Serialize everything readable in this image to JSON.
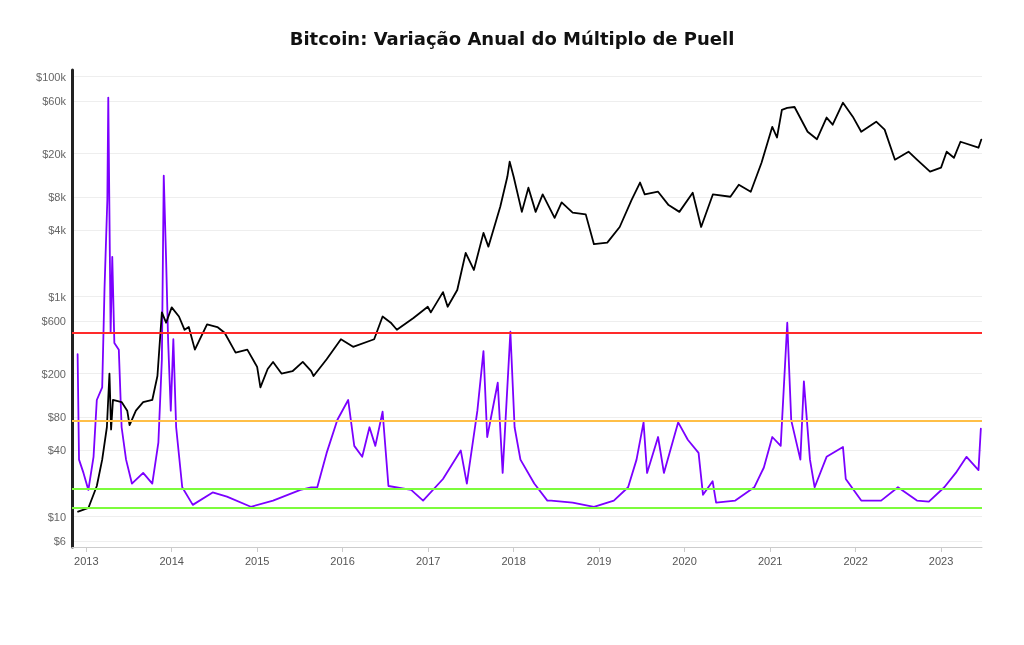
{
  "chart_data": {
    "type": "line",
    "title": "Bitcoin: Variação Anual do Múltiplo de Puell",
    "log": "y",
    "grid": "y",
    "marker": "none",
    "line_style": "solid",
    "xlim": [
      "2012-11-01",
      "2023-06-25"
    ],
    "xticks": [
      "2013",
      "2014",
      "2015",
      "2016",
      "2017",
      "2018",
      "2019",
      "2020",
      "2021",
      "2022",
      "2023"
    ],
    "ylim": [
      5.3,
      115000
    ],
    "yticks": [
      {
        "value": 6,
        "label": "$6"
      },
      {
        "value": 10,
        "label": "$10"
      },
      {
        "value": 40,
        "label": "$40"
      },
      {
        "value": 80,
        "label": "$80"
      },
      {
        "value": 200,
        "label": "$200"
      },
      {
        "value": 600,
        "label": "$600"
      },
      {
        "value": 1000,
        "label": "$1k"
      },
      {
        "value": 4000,
        "label": "$4k"
      },
      {
        "value": 8000,
        "label": "$8k"
      },
      {
        "value": 20000,
        "label": "$20k"
      },
      {
        "value": 60000,
        "label": "$60k"
      },
      {
        "value": 100000,
        "label": "$100k"
      }
    ],
    "series": [
      {
        "color": "#7b00ff",
        "x": [
          "2012-11-25",
          "2012-12-01",
          "2012-12-20",
          "2013-01-10",
          "2013-02-01",
          "2013-02-15",
          "2013-03-10",
          "2013-03-20",
          "2013-04-01",
          "2013-04-05",
          "2013-04-15",
          "2013-04-22",
          "2013-05-01",
          "2013-05-20",
          "2013-06-01",
          "2013-06-20",
          "2013-07-15",
          "2013-09-01",
          "2013-10-10",
          "2013-11-05",
          "2013-11-20",
          "2013-11-28",
          "2013-12-08",
          "2013-12-17",
          "2013-12-28",
          "2014-01-08",
          "2014-01-20",
          "2014-02-15",
          "2014-04-01",
          "2014-06-25",
          "2014-08-25",
          "2014-12-05",
          "2015-03-10",
          "2015-07-05",
          "2015-08-20",
          "2015-09-15",
          "2015-10-25",
          "2015-12-10",
          "2016-01-25",
          "2016-02-20",
          "2016-03-25",
          "2016-04-25",
          "2016-05-20",
          "2016-06-20",
          "2016-07-15",
          "2016-10-20",
          "2016-12-10",
          "2017-03-05",
          "2017-05-20",
          "2017-06-15",
          "2017-07-30",
          "2017-08-25",
          "2017-09-10",
          "2017-10-25",
          "2017-11-15",
          "2017-12-18",
          "2018-01-05",
          "2018-01-30",
          "2018-03-30",
          "2018-05-25",
          "2018-06-10",
          "2018-09-10",
          "2018-12-10",
          "2019-03-05",
          "2019-05-05",
          "2019-06-10",
          "2019-07-10",
          "2019-07-25",
          "2019-09-10",
          "2019-10-05",
          "2019-12-05",
          "2020-01-15",
          "2020-03-01",
          "2020-03-20",
          "2020-04-30",
          "2020-05-15",
          "2020-08-05",
          "2020-10-25",
          "2020-12-05",
          "2021-01-10",
          "2021-02-15",
          "2021-03-15",
          "2021-04-01",
          "2021-05-10",
          "2021-05-25",
          "2021-06-20",
          "2021-07-10",
          "2021-08-30",
          "2021-11-08",
          "2021-11-20",
          "2022-01-25",
          "2022-04-20",
          "2022-07-01",
          "2022-09-20",
          "2022-11-10",
          "2023-01-15",
          "2023-03-05",
          "2023-04-20",
          "2023-06-10",
          "2023-06-20"
        ],
        "values": [
          300,
          33,
          25,
          17.5,
          35,
          115,
          150,
          1200,
          7600,
          64500,
          470,
          2300,
          380,
          330,
          65,
          33,
          20,
          25,
          20,
          47,
          270,
          12600,
          2200,
          380,
          92,
          410,
          65,
          18.5,
          12.8,
          16.6,
          15.2,
          12.3,
          14,
          17.5,
          18.5,
          18.5,
          38,
          76,
          115,
          44,
          35,
          65,
          44,
          90,
          19,
          17.5,
          14,
          22,
          40,
          20,
          92,
          320,
          53,
          165,
          25,
          480,
          65,
          33,
          20,
          14,
          14,
          13.4,
          12.3,
          14,
          18.5,
          33,
          72,
          25,
          53,
          25,
          72,
          50,
          38,
          15.8,
          21,
          13.4,
          14,
          18.5,
          28,
          53,
          44,
          580,
          75,
          33,
          170,
          33,
          18.5,
          35,
          43,
          22,
          14,
          14,
          18.5,
          14,
          13.7,
          18.5,
          25,
          35,
          26.5,
          63
        ]
      },
      {
        "color": "#000000",
        "x": [
          "2012-11-27",
          "2013-01-10",
          "2013-02-15",
          "2013-03-10",
          "2013-03-30",
          "2013-04-10",
          "2013-04-17",
          "2013-04-25",
          "2013-06-01",
          "2013-06-25",
          "2013-07-05",
          "2013-08-01",
          "2013-09-01",
          "2013-10-10",
          "2013-11-01",
          "2013-11-20",
          "2013-12-08",
          "2014-01-01",
          "2014-02-01",
          "2014-02-25",
          "2014-03-15",
          "2014-04-10",
          "2014-05-01",
          "2014-06-01",
          "2014-07-15",
          "2014-08-15",
          "2014-10-01",
          "2014-11-20",
          "2015-01-01",
          "2015-01-15",
          "2015-02-15",
          "2015-03-10",
          "2015-04-15",
          "2015-06-01",
          "2015-07-15",
          "2015-08-20",
          "2015-08-30",
          "2015-10-25",
          "2015-12-25",
          "2016-02-15",
          "2016-05-15",
          "2016-06-20",
          "2016-07-25",
          "2016-08-20",
          "2016-10-30",
          "2016-12-30",
          "2017-01-12",
          "2017-03-05",
          "2017-03-25",
          "2017-05-05",
          "2017-06-10",
          "2017-07-15",
          "2017-08-25",
          "2017-09-15",
          "2017-11-05",
          "2017-12-05",
          "2017-12-15",
          "2018-01-01",
          "2018-02-05",
          "2018-03-05",
          "2018-04-05",
          "2018-05-05",
          "2018-06-25",
          "2018-07-25",
          "2018-09-10",
          "2018-11-05",
          "2018-12-10",
          "2019-02-05",
          "2019-03-30",
          "2019-05-20",
          "2019-06-25",
          "2019-07-15",
          "2019-09-10",
          "2019-10-25",
          "2019-12-10",
          "2020-02-05",
          "2020-03-12",
          "2020-05-01",
          "2020-07-15",
          "2020-08-20",
          "2020-10-10",
          "2020-11-25",
          "2021-01-10",
          "2021-01-30",
          "2021-02-20",
          "2021-03-15",
          "2021-04-15",
          "2021-06-10",
          "2021-07-20",
          "2021-08-30",
          "2021-09-25",
          "2021-11-08",
          "2021-12-20",
          "2022-01-25",
          "2022-03-30",
          "2022-05-05",
          "2022-06-18",
          "2022-08-15",
          "2022-09-20",
          "2022-11-15",
          "2023-01-01",
          "2023-01-25",
          "2023-02-25",
          "2023-03-25",
          "2023-06-10",
          "2023-06-22"
        ],
        "values": [
          11.1,
          12,
          19,
          33,
          65,
          200,
          62,
          115,
          110,
          92,
          68,
          92,
          110,
          115,
          190,
          720,
          580,
          800,
          660,
          500,
          530,
          330,
          410,
          560,
          530,
          470,
          310,
          330,
          230,
          150,
          220,
          255,
          200,
          210,
          255,
          210,
          190,
          270,
          410,
          350,
          410,
          660,
          580,
          500,
          640,
          810,
          720,
          1100,
          810,
          1150,
          2500,
          1750,
          3800,
          2850,
          6600,
          12300,
          16900,
          12300,
          5900,
          9800,
          5900,
          8500,
          5200,
          7200,
          5800,
          5600,
          3000,
          3100,
          4300,
          7600,
          10900,
          8500,
          9000,
          6800,
          5900,
          8800,
          4300,
          8500,
          8100,
          10400,
          9000,
          16500,
          35000,
          28000,
          50000,
          52000,
          53000,
          31600,
          27000,
          42500,
          36600,
          58000,
          43300,
          31600,
          39000,
          33000,
          17600,
          20800,
          17600,
          13700,
          14900,
          20800,
          18300,
          25600,
          22600,
          26800
        ]
      }
    ],
    "ref_lines": [
      {
        "axis": "y",
        "value": 470,
        "color": "#ff2a2a"
      },
      {
        "axis": "y",
        "value": 75,
        "color": "#ffbf47"
      },
      {
        "axis": "y",
        "value": 17.8,
        "color": "#7cfc3c"
      },
      {
        "axis": "y",
        "value": 12,
        "color": "#7cfc3c"
      }
    ]
  }
}
